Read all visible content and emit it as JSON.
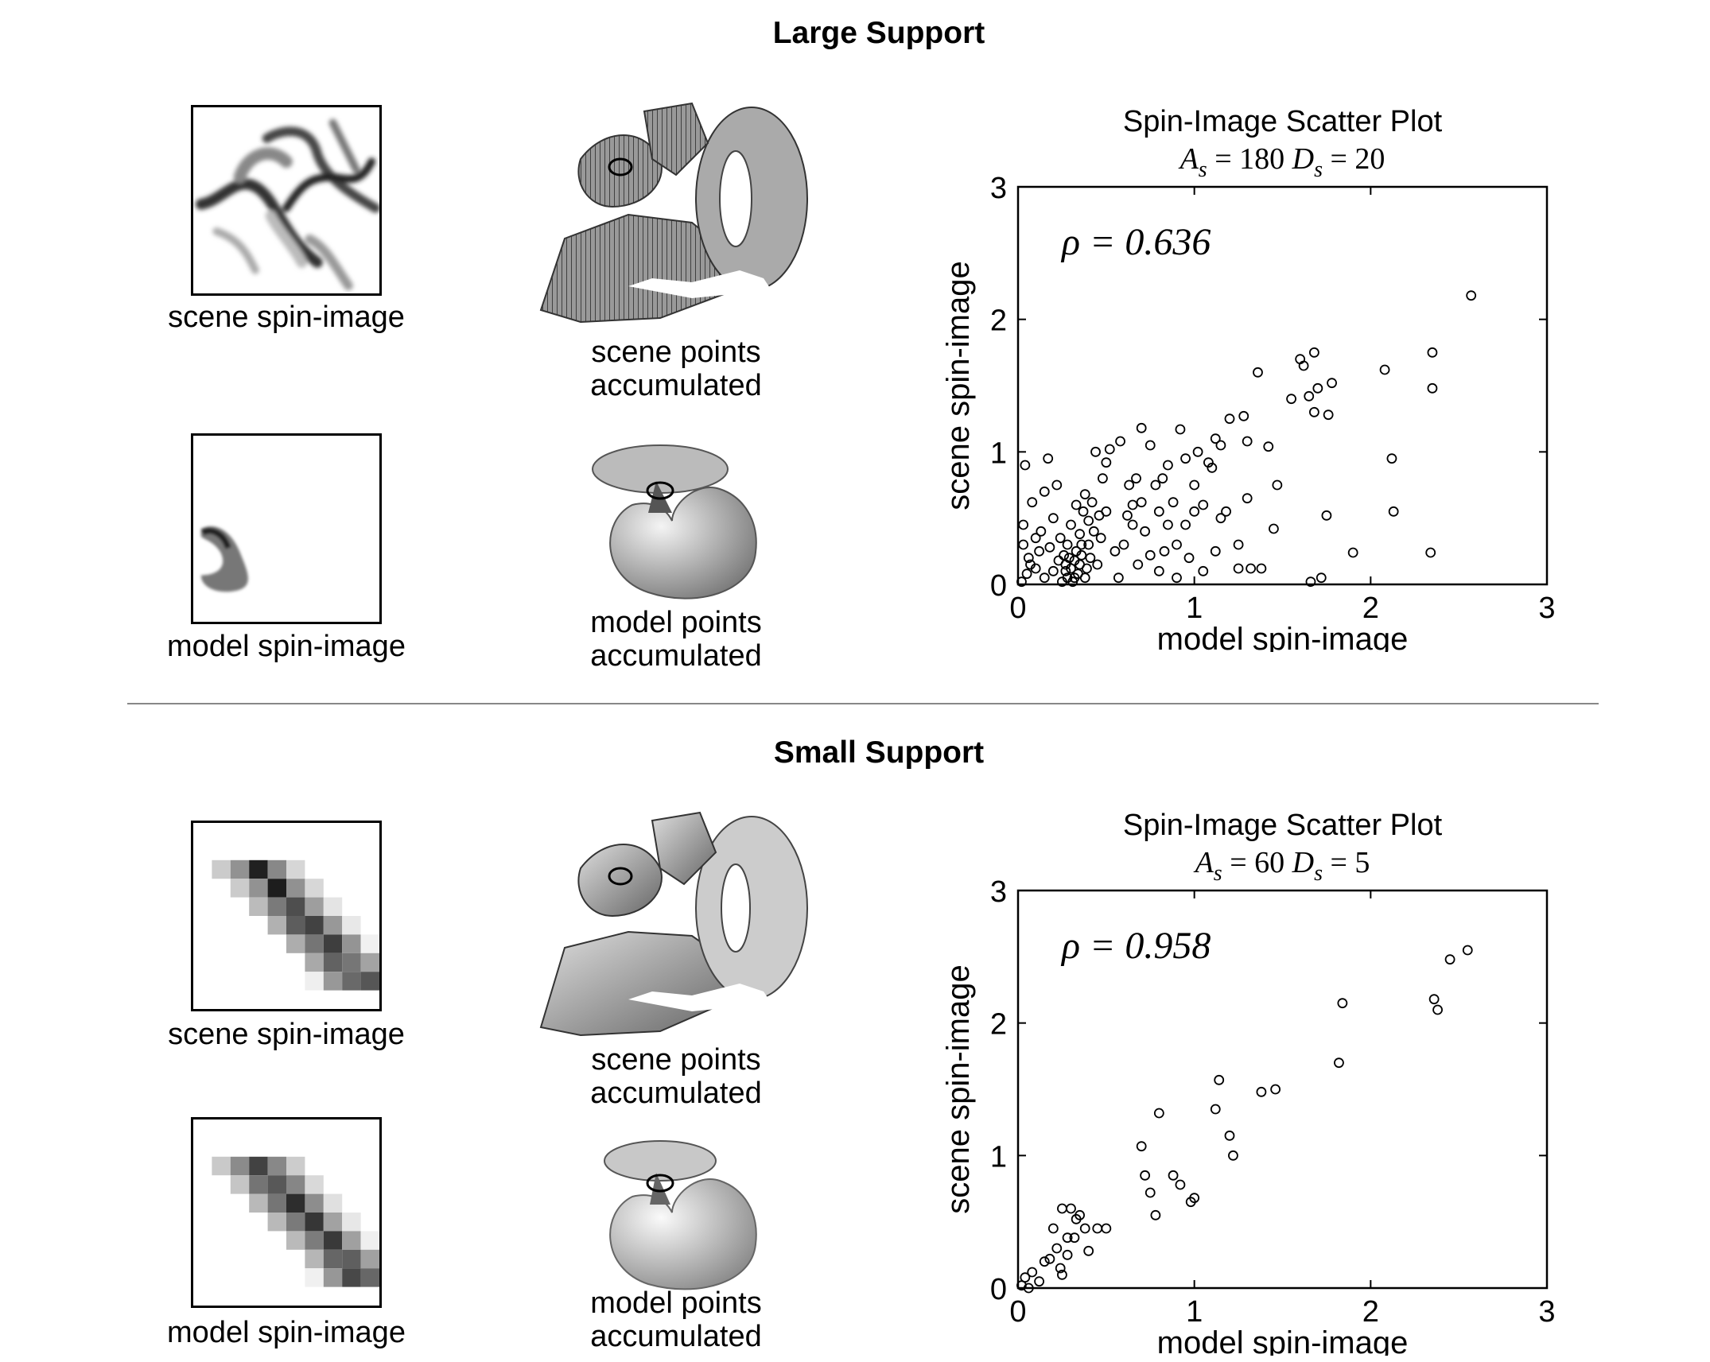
{
  "sections": [
    {
      "title": "Large Support",
      "scene_caption": "scene spin-image",
      "model_caption": "model spin-image",
      "scene_points_caption": [
        "scene points",
        "accumulated"
      ],
      "model_points_caption": [
        "model points",
        "accumulated"
      ]
    },
    {
      "title": "Small Support",
      "scene_caption": "scene spin-image",
      "model_caption": "model spin-image",
      "scene_points_caption": [
        "scene points",
        "accumulated"
      ],
      "model_points_caption": [
        "model points",
        "accumulated"
      ]
    }
  ],
  "chart_data": [
    {
      "type": "scatter",
      "title": "Spin-Image Scatter Plot",
      "subtitle": {
        "A_value": "180",
        "D_value": "20"
      },
      "annotation": "ρ = 0.636",
      "xlabel": "model spin-image",
      "ylabel": "scene spin-image",
      "xlim": [
        0,
        3
      ],
      "ylim": [
        0,
        3
      ],
      "xticks": [
        0,
        1,
        2,
        3
      ],
      "yticks": [
        0,
        1,
        2,
        3
      ],
      "grid": false,
      "points": [
        [
          0.02,
          0.02
        ],
        [
          0.03,
          0.3
        ],
        [
          0.03,
          0.45
        ],
        [
          0.04,
          0.9
        ],
        [
          0.05,
          0.08
        ],
        [
          0.06,
          0.2
        ],
        [
          0.07,
          0.15
        ],
        [
          0.08,
          0.62
        ],
        [
          0.1,
          0.35
        ],
        [
          0.1,
          0.12
        ],
        [
          0.12,
          0.25
        ],
        [
          0.13,
          0.4
        ],
        [
          0.15,
          0.05
        ],
        [
          0.15,
          0.7
        ],
        [
          0.17,
          0.95
        ],
        [
          0.18,
          0.28
        ],
        [
          0.2,
          0.5
        ],
        [
          0.2,
          0.1
        ],
        [
          0.22,
          0.75
        ],
        [
          0.23,
          0.18
        ],
        [
          0.24,
          0.35
        ],
        [
          0.25,
          0.02
        ],
        [
          0.26,
          0.22
        ],
        [
          0.27,
          0.15
        ],
        [
          0.28,
          0.3
        ],
        [
          0.28,
          0.05
        ],
        [
          0.29,
          0.2
        ],
        [
          0.3,
          0.12
        ],
        [
          0.3,
          0.45
        ],
        [
          0.31,
          0.02
        ],
        [
          0.32,
          0.18
        ],
        [
          0.33,
          0.25
        ],
        [
          0.33,
          0.6
        ],
        [
          0.34,
          0.08
        ],
        [
          0.35,
          0.15
        ],
        [
          0.35,
          0.38
        ],
        [
          0.36,
          0.22
        ],
        [
          0.37,
          0.55
        ],
        [
          0.38,
          0.05
        ],
        [
          0.38,
          0.68
        ],
        [
          0.39,
          0.12
        ],
        [
          0.4,
          0.3
        ],
        [
          0.4,
          0.48
        ],
        [
          0.41,
          0.2
        ],
        [
          0.42,
          0.62
        ],
        [
          0.43,
          0.4
        ],
        [
          0.44,
          1.0
        ],
        [
          0.45,
          0.15
        ],
        [
          0.46,
          0.52
        ],
        [
          0.47,
          0.35
        ],
        [
          0.48,
          0.8
        ],
        [
          0.5,
          0.55
        ],
        [
          0.5,
          0.92
        ],
        [
          0.52,
          1.02
        ],
        [
          0.55,
          0.25
        ],
        [
          0.57,
          0.05
        ],
        [
          0.58,
          1.08
        ],
        [
          0.6,
          0.3
        ],
        [
          0.62,
          0.52
        ],
        [
          0.63,
          0.75
        ],
        [
          0.65,
          0.45
        ],
        [
          0.65,
          0.6
        ],
        [
          0.67,
          0.8
        ],
        [
          0.68,
          0.15
        ],
        [
          0.7,
          0.62
        ],
        [
          0.7,
          1.18
        ],
        [
          0.72,
          0.4
        ],
        [
          0.75,
          0.22
        ],
        [
          0.75,
          1.05
        ],
        [
          0.78,
          0.75
        ],
        [
          0.8,
          0.55
        ],
        [
          0.8,
          0.1
        ],
        [
          0.82,
          0.8
        ],
        [
          0.83,
          0.25
        ],
        [
          0.85,
          0.9
        ],
        [
          0.85,
          0.45
        ],
        [
          0.88,
          0.62
        ],
        [
          0.9,
          0.05
        ],
        [
          0.9,
          0.3
        ],
        [
          0.92,
          1.17
        ],
        [
          0.95,
          0.95
        ],
        [
          0.95,
          0.45
        ],
        [
          0.97,
          0.2
        ],
        [
          1.0,
          0.55
        ],
        [
          1.0,
          0.75
        ],
        [
          1.02,
          1.0
        ],
        [
          1.05,
          0.6
        ],
        [
          1.05,
          0.1
        ],
        [
          1.08,
          0.92
        ],
        [
          1.1,
          0.88
        ],
        [
          1.12,
          0.25
        ],
        [
          1.12,
          1.1
        ],
        [
          1.15,
          0.5
        ],
        [
          1.15,
          1.05
        ],
        [
          1.18,
          0.55
        ],
        [
          1.2,
          1.25
        ],
        [
          1.25,
          0.3
        ],
        [
          1.25,
          0.12
        ],
        [
          1.28,
          1.27
        ],
        [
          1.3,
          1.08
        ],
        [
          1.3,
          0.65
        ],
        [
          1.32,
          0.12
        ],
        [
          1.36,
          1.6
        ],
        [
          1.38,
          0.12
        ],
        [
          1.42,
          1.04
        ],
        [
          1.45,
          0.42
        ],
        [
          1.47,
          0.75
        ],
        [
          1.55,
          1.4
        ],
        [
          1.6,
          1.7
        ],
        [
          1.62,
          1.65
        ],
        [
          1.65,
          1.42
        ],
        [
          1.66,
          0.02
        ],
        [
          1.68,
          1.75
        ],
        [
          1.68,
          1.3
        ],
        [
          1.7,
          1.48
        ],
        [
          1.72,
          0.05
        ],
        [
          1.75,
          0.52
        ],
        [
          1.76,
          1.28
        ],
        [
          1.78,
          1.52
        ],
        [
          1.9,
          0.24
        ],
        [
          2.08,
          1.62
        ],
        [
          2.12,
          0.95
        ],
        [
          2.13,
          0.55
        ],
        [
          2.34,
          0.24
        ],
        [
          2.35,
          1.75
        ],
        [
          2.35,
          1.48
        ],
        [
          2.57,
          2.18
        ],
        [
          0.27,
          0.1
        ],
        [
          0.32,
          0.05
        ],
        [
          0.36,
          0.3
        ]
      ]
    },
    {
      "type": "scatter",
      "title": "Spin-Image Scatter Plot",
      "subtitle": {
        "A_value": "60",
        "D_value": "5"
      },
      "annotation": "ρ = 0.958",
      "xlabel": "model spin-image",
      "ylabel": "scene spin-image",
      "xlim": [
        0,
        3
      ],
      "ylim": [
        0,
        3
      ],
      "xticks": [
        0,
        1,
        2,
        3
      ],
      "yticks": [
        0,
        1,
        2,
        3
      ],
      "grid": false,
      "points": [
        [
          0.02,
          0.02
        ],
        [
          0.04,
          0.08
        ],
        [
          0.06,
          0.0
        ],
        [
          0.08,
          0.12
        ],
        [
          0.12,
          0.05
        ],
        [
          0.15,
          0.2
        ],
        [
          0.18,
          0.22
        ],
        [
          0.2,
          0.45
        ],
        [
          0.22,
          0.3
        ],
        [
          0.24,
          0.15
        ],
        [
          0.25,
          0.6
        ],
        [
          0.25,
          0.1
        ],
        [
          0.28,
          0.38
        ],
        [
          0.28,
          0.25
        ],
        [
          0.3,
          0.6
        ],
        [
          0.32,
          0.38
        ],
        [
          0.33,
          0.52
        ],
        [
          0.35,
          0.55
        ],
        [
          0.38,
          0.45
        ],
        [
          0.4,
          0.28
        ],
        [
          0.45,
          0.45
        ],
        [
          0.5,
          0.45
        ],
        [
          0.7,
          1.07
        ],
        [
          0.72,
          0.85
        ],
        [
          0.75,
          0.72
        ],
        [
          0.78,
          0.55
        ],
        [
          0.8,
          1.32
        ],
        [
          0.88,
          0.85
        ],
        [
          0.92,
          0.78
        ],
        [
          0.98,
          0.65
        ],
        [
          1.0,
          0.68
        ],
        [
          1.12,
          1.35
        ],
        [
          1.14,
          1.57
        ],
        [
          1.2,
          1.15
        ],
        [
          1.22,
          1.0
        ],
        [
          1.38,
          1.48
        ],
        [
          1.46,
          1.5
        ],
        [
          1.82,
          1.7
        ],
        [
          1.84,
          2.15
        ],
        [
          2.36,
          2.18
        ],
        [
          2.38,
          2.1
        ],
        [
          2.45,
          2.48
        ],
        [
          2.55,
          2.55
        ]
      ]
    }
  ]
}
